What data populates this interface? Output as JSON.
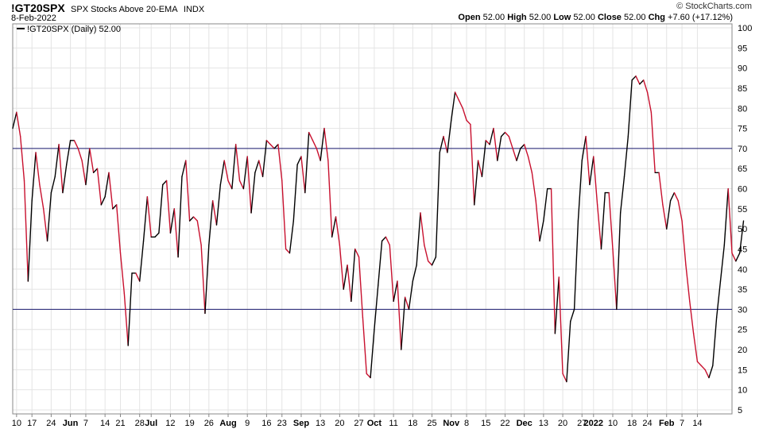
{
  "header": {
    "symbol": "!GT20SPX",
    "name": "SPX Stocks Above 20-EMA",
    "exchange": "INDX",
    "date": "8-Feb-2022",
    "watermark": "© StockCharts.com",
    "open_label": "Open",
    "open": "52.00",
    "high_label": "High",
    "high": "52.00",
    "low_label": "Low",
    "low": "52.00",
    "close_label": "Close",
    "close": "52.00",
    "chg_label": "Chg",
    "chg": "+7.60 (+17.12%)"
  },
  "legend": {
    "label": "!GT20SPX (Daily) 52.00"
  },
  "colors": {
    "up": "#000000",
    "down": "#c8102e",
    "ref": "#1a1a6e",
    "grid": "#e4e4e4"
  },
  "chart_data": {
    "type": "line",
    "ylim": [
      4,
      101
    ],
    "yticks": [
      5,
      10,
      15,
      20,
      25,
      30,
      35,
      40,
      45,
      50,
      55,
      60,
      65,
      70,
      75,
      80,
      85,
      90,
      95,
      100
    ],
    "ref_lines": [
      30,
      70
    ],
    "grid": true,
    "legend_position": "top-left",
    "xlim": [
      0,
      187
    ],
    "xticks": [
      {
        "i": 1,
        "label": "10"
      },
      {
        "i": 5,
        "label": "17"
      },
      {
        "i": 10,
        "label": "24"
      },
      {
        "i": 15,
        "label": "Jun"
      },
      {
        "i": 19,
        "label": "7"
      },
      {
        "i": 24,
        "label": "14"
      },
      {
        "i": 28,
        "label": "21"
      },
      {
        "i": 33,
        "label": "28"
      },
      {
        "i": 36,
        "label": "Jul"
      },
      {
        "i": 41,
        "label": "12"
      },
      {
        "i": 46,
        "label": "19"
      },
      {
        "i": 51,
        "label": "26"
      },
      {
        "i": 56,
        "label": "Aug"
      },
      {
        "i": 61,
        "label": "9"
      },
      {
        "i": 66,
        "label": "16"
      },
      {
        "i": 70,
        "label": "23"
      },
      {
        "i": 75,
        "label": "Sep"
      },
      {
        "i": 80,
        "label": "13"
      },
      {
        "i": 85,
        "label": "20"
      },
      {
        "i": 90,
        "label": "27"
      },
      {
        "i": 94,
        "label": "Oct"
      },
      {
        "i": 99,
        "label": "11"
      },
      {
        "i": 104,
        "label": "18"
      },
      {
        "i": 109,
        "label": "25"
      },
      {
        "i": 114,
        "label": "Nov"
      },
      {
        "i": 118,
        "label": "8"
      },
      {
        "i": 123,
        "label": "15"
      },
      {
        "i": 128,
        "label": "22"
      },
      {
        "i": 133,
        "label": "Dec"
      },
      {
        "i": 138,
        "label": "13"
      },
      {
        "i": 143,
        "label": "20"
      },
      {
        "i": 148,
        "label": "27"
      },
      {
        "i": 151,
        "label": "2022"
      },
      {
        "i": 156,
        "label": "10"
      },
      {
        "i": 161,
        "label": "18"
      },
      {
        "i": 165,
        "label": "24"
      },
      {
        "i": 170,
        "label": "Feb"
      },
      {
        "i": 174,
        "label": "7"
      },
      {
        "i": 178,
        "label": "14"
      }
    ],
    "series": [
      {
        "values": [
          75,
          79,
          73,
          62,
          37,
          57,
          69,
          61,
          55,
          47,
          59,
          63,
          71,
          59,
          66,
          72,
          72,
          70,
          67,
          61,
          70,
          64,
          65,
          56,
          58,
          64,
          55,
          56,
          44,
          34,
          21,
          39,
          39,
          37,
          47,
          58,
          48,
          48,
          49,
          61,
          62,
          49,
          55,
          43,
          63,
          67,
          52,
          53,
          52,
          46,
          29,
          46,
          57,
          51,
          61,
          67,
          62,
          60,
          71,
          62,
          60,
          68,
          54,
          64,
          67,
          63,
          72,
          71,
          70,
          71,
          62,
          45,
          44,
          52,
          66,
          68,
          59,
          74,
          72,
          70,
          67,
          75,
          67,
          48,
          53,
          46,
          35,
          41,
          32,
          45,
          43,
          28,
          14,
          13,
          25,
          36,
          47,
          48,
          46,
          32,
          37,
          20,
          33,
          30,
          37,
          41,
          54,
          46,
          42,
          41,
          43,
          69,
          73,
          69,
          77,
          84,
          82,
          80,
          77,
          76,
          56,
          67,
          63,
          72,
          71,
          75,
          67,
          73,
          74,
          73,
          70,
          67,
          70,
          71,
          68,
          64,
          57,
          47,
          52,
          60,
          60,
          24,
          38,
          14,
          12,
          27,
          30,
          52,
          67,
          73,
          61,
          68,
          56,
          45,
          59,
          59,
          45,
          30,
          54,
          63,
          73,
          87,
          88,
          86,
          87,
          84,
          79,
          64,
          64,
          56,
          50,
          57,
          59,
          57,
          52,
          41,
          32,
          24,
          17,
          16,
          15,
          13,
          16,
          28,
          37,
          46,
          60,
          44,
          42,
          44,
          52
        ]
      }
    ]
  }
}
